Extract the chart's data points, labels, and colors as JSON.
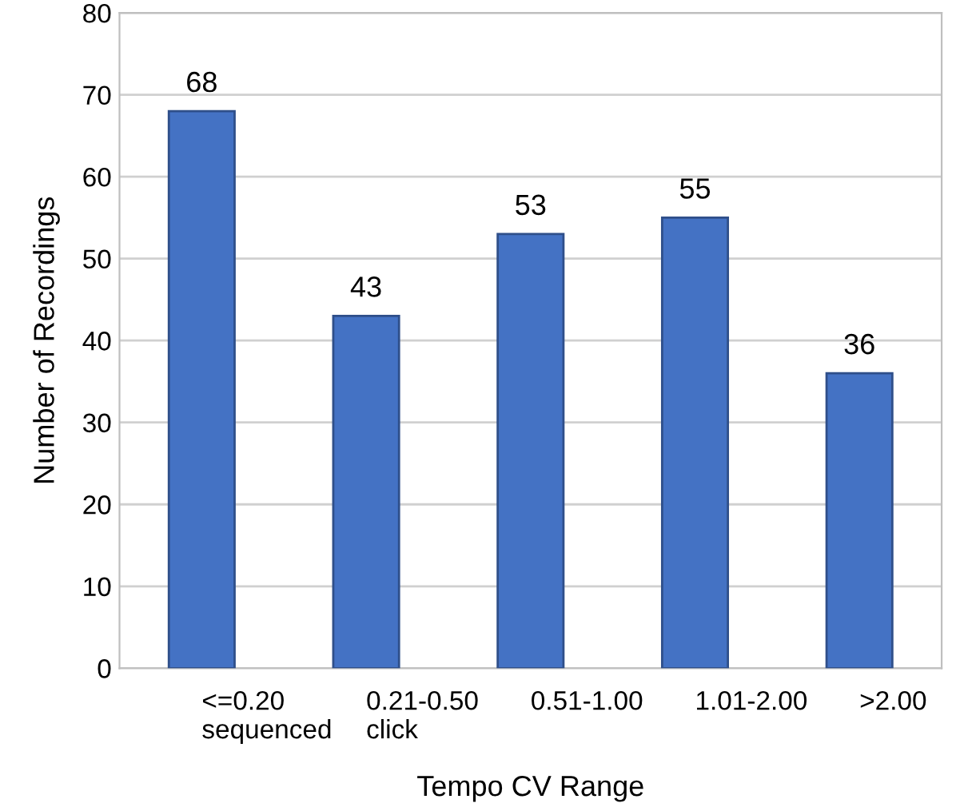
{
  "chart_data": {
    "type": "bar",
    "xlabel": "Tempo CV Range",
    "ylabel": "Number of Recordings",
    "categories": [
      "<=0.20\nsequenced",
      "0.21-0.50\nclick",
      "0.51-1.00",
      "1.01-2.00",
      ">2.00"
    ],
    "values": [
      68,
      43,
      53,
      55,
      36
    ],
    "color": "#4472c4",
    "ylim": [
      0,
      80
    ],
    "yticks": [
      0,
      10,
      20,
      30,
      40,
      50,
      60,
      70,
      80
    ],
    "grid": "y",
    "data_labels": true
  }
}
